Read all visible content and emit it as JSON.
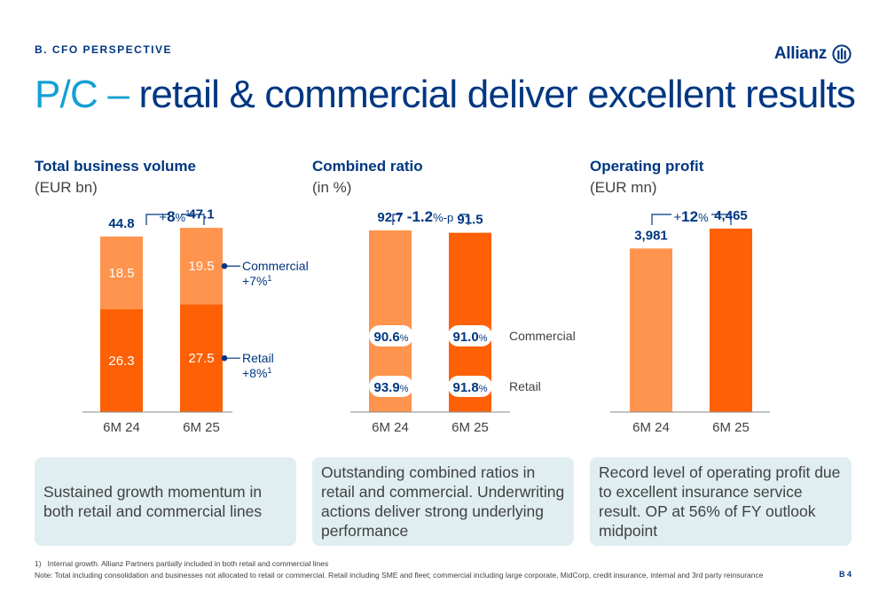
{
  "header": {
    "section": "B. CFO PERSPECTIVE",
    "brand": "Allianz",
    "title_accent": "P/C – ",
    "title_main": "retail & commercial deliver excellent results",
    "page_number": "B 4"
  },
  "panels": [
    {
      "title": "Total business volume",
      "subtitle": "(EUR bn)",
      "growth_prefix": "+",
      "growth_value": "8",
      "growth_unit": "%",
      "growth_note": "1"
    },
    {
      "title": "Combined ratio",
      "subtitle": "(in %)",
      "growth_prefix": "",
      "growth_value": "-1.2",
      "growth_unit": "%-p",
      "growth_note": ""
    },
    {
      "title": "Operating profit",
      "subtitle": "(EUR mn)",
      "growth_prefix": "+",
      "growth_value": "12",
      "growth_unit": "%",
      "growth_note": ""
    }
  ],
  "chart_data": [
    {
      "type": "bar",
      "stacked": true,
      "categories": [
        "6M 24",
        "6M 25"
      ],
      "series": [
        {
          "name": "Retail",
          "values": [
            26.3,
            27.5
          ],
          "color": "#fd6005",
          "value_labels": [
            "26.3",
            "27.5"
          ],
          "legend_note": "+8%",
          "legend_note_sup": "1"
        },
        {
          "name": "Commercial",
          "values": [
            18.5,
            19.5
          ],
          "color": "#fe944d",
          "value_labels": [
            "18.5",
            "19.5"
          ],
          "legend_note": "+7%",
          "legend_note_sup": "1"
        }
      ],
      "totals": [
        44.8,
        47.1
      ],
      "total_labels": [
        "44.8",
        "47.1"
      ],
      "ylim": [
        0,
        52
      ]
    },
    {
      "type": "bar",
      "categories": [
        "6M 24",
        "6M 25"
      ],
      "values": [
        92.7,
        91.5
      ],
      "value_labels": [
        "92.7",
        "91.5"
      ],
      "colors": [
        "#fe944d",
        "#fd6005"
      ],
      "badges": [
        {
          "name": "Commercial",
          "values": [
            "90.6",
            "91.0"
          ]
        },
        {
          "name": "Retail",
          "values": [
            "93.9",
            "91.8"
          ]
        }
      ],
      "badge_unit": "%",
      "ylim": [
        0,
        104
      ]
    },
    {
      "type": "bar",
      "categories": [
        "6M 24",
        "6M 25"
      ],
      "values": [
        3981,
        4465
      ],
      "value_labels": [
        "3,981",
        "4,465"
      ],
      "colors": [
        "#fe944d",
        "#fd6005"
      ],
      "ylim": [
        0,
        4960
      ]
    }
  ],
  "summaries": [
    "Sustained growth momentum in both retail and commercial lines",
    "Outstanding combined ratios in retail and commercial. Underwriting actions deliver strong underlying performance",
    "Record level of operating profit due to excellent insurance service result. OP at 56% of FY outlook midpoint"
  ],
  "footnotes": {
    "note1": "1)   Internal growth. Allianz Partners partially included in both retail and commercial lines",
    "note2": "Note: Total including consolidation and businesses not allocated to retail or commercial. Retail including SME and fleet; commercial including large corporate, MidCorp, credit insurance, internal and 3rd party reinsurance"
  },
  "colors": {
    "navy": "#003781",
    "accent_blue": "#13a0d3",
    "orange_dark": "#fd6005",
    "orange_light": "#fe944d",
    "box_bg": "#e0eef1",
    "text_gray": "#414141"
  }
}
